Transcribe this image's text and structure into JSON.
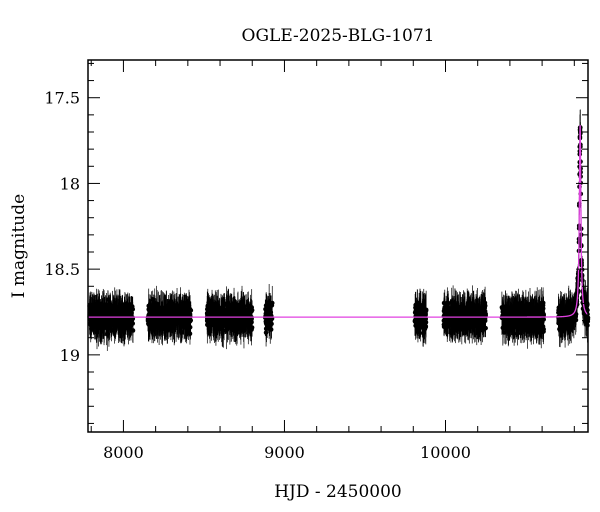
{
  "chart_data": {
    "type": "scatter",
    "title": "OGLE-2025-BLG-1071",
    "xlabel": "HJD - 2450000",
    "ylabel": "I magnitude",
    "xlim": [
      7780,
      10885
    ],
    "ylim": [
      19.45,
      17.28
    ],
    "y_inverted": true,
    "grid": false,
    "x_ticks": [
      8000,
      9000,
      10000
    ],
    "x_tick_labels": [
      "8000",
      "9000",
      "10000"
    ],
    "y_ticks": [
      17.5,
      18,
      18.5,
      19
    ],
    "y_tick_labels": [
      "17.5",
      "18",
      "18.5",
      "19"
    ],
    "series": [
      {
        "kind": "observed",
        "marker": "filled circles with error bars",
        "color": "#000000",
        "baseline_mag": 18.78,
        "scatter_mag": 0.07,
        "typical_error_mag": 0.08,
        "seasons_hjd": [
          [
            7790,
            8060
          ],
          [
            8150,
            8420
          ],
          [
            8520,
            8800
          ],
          [
            8880,
            8925
          ],
          [
            9810,
            9880
          ],
          [
            9990,
            10250
          ],
          [
            10350,
            10610
          ],
          [
            10700,
            10885
          ]
        ]
      },
      {
        "kind": "model",
        "marker": "line",
        "color": "#e040e0",
        "baseline_mag": 18.78,
        "peak_hjd": 10836,
        "peak_mag": 17.66
      }
    ]
  }
}
